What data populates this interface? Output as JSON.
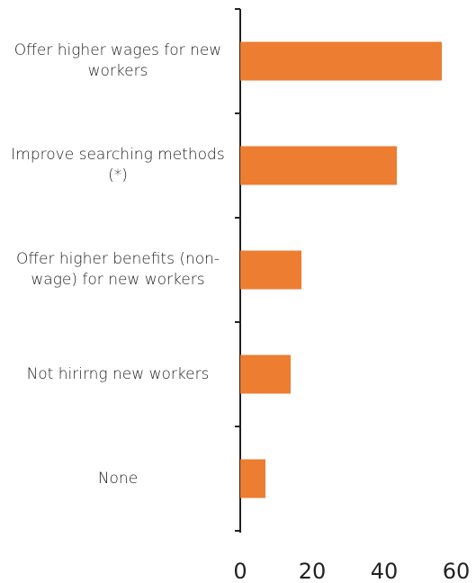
{
  "chart_data": {
    "type": "barh",
    "categories": [
      "Offer higher wages for new workers",
      "Improve searching methods (*)",
      "Offer higher benefits (non-wage) for new workers",
      "Not hirirng new workers",
      "None"
    ],
    "values": [
      56,
      43.5,
      17,
      14,
      7
    ],
    "color": "#ed7d31",
    "xlim": [
      0,
      60
    ],
    "xticks": [
      0,
      20,
      40,
      60
    ]
  }
}
